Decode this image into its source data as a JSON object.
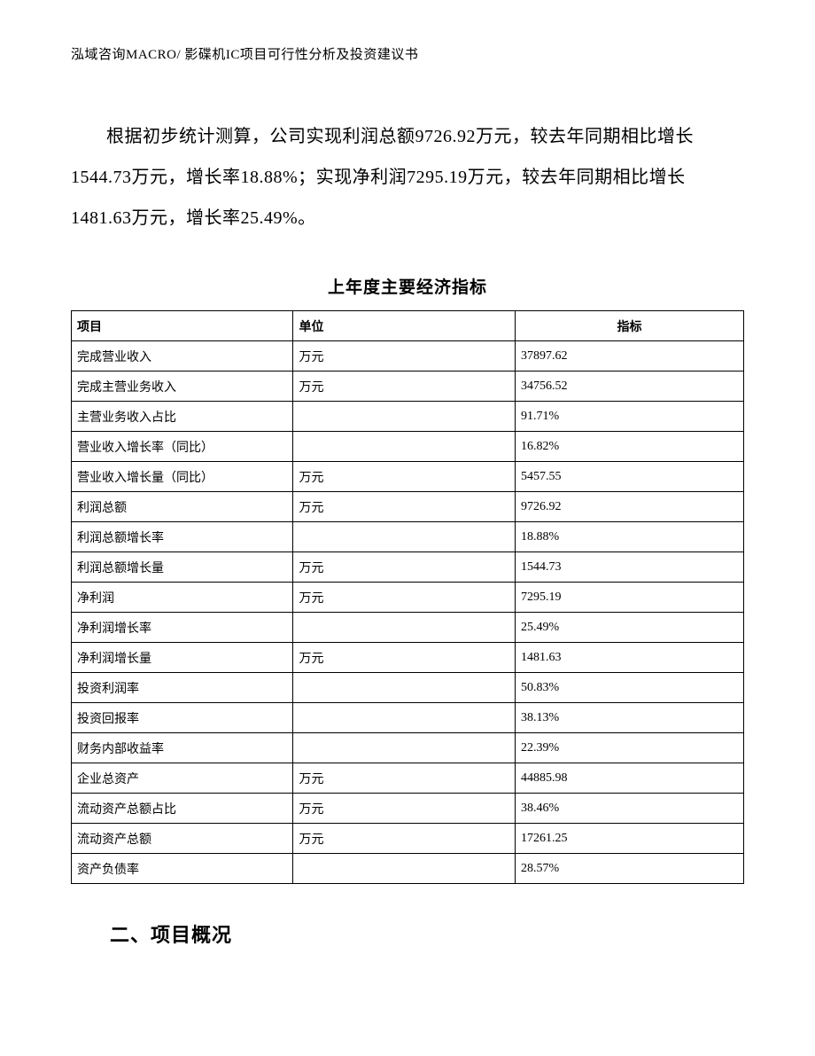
{
  "header": "泓域咨询MACRO/   影碟机IC项目可行性分析及投资建议书",
  "paragraph": "根据初步统计测算，公司实现利润总额9726.92万元，较去年同期相比增长1544.73万元，增长率18.88%；实现净利润7295.19万元，较去年同期相比增长1481.63万元，增长率25.49%。",
  "table_title": "上年度主要经济指标",
  "columns": {
    "item": "项目",
    "unit": "单位",
    "indicator": "指标"
  },
  "rows": [
    {
      "item": "完成营业收入",
      "unit": "万元",
      "indicator": "37897.62"
    },
    {
      "item": "完成主营业务收入",
      "unit": "万元",
      "indicator": "34756.52"
    },
    {
      "item": "主营业务收入占比",
      "unit": "",
      "indicator": "91.71%"
    },
    {
      "item": "营业收入增长率（同比）",
      "unit": "",
      "indicator": "16.82%"
    },
    {
      "item": "营业收入增长量（同比）",
      "unit": "万元",
      "indicator": "5457.55"
    },
    {
      "item": "利润总额",
      "unit": "万元",
      "indicator": "9726.92"
    },
    {
      "item": "利润总额增长率",
      "unit": "",
      "indicator": "18.88%"
    },
    {
      "item": "利润总额增长量",
      "unit": "万元",
      "indicator": "1544.73"
    },
    {
      "item": "净利润",
      "unit": "万元",
      "indicator": "7295.19"
    },
    {
      "item": "净利润增长率",
      "unit": "",
      "indicator": "25.49%"
    },
    {
      "item": "净利润增长量",
      "unit": "万元",
      "indicator": "1481.63"
    },
    {
      "item": "投资利润率",
      "unit": "",
      "indicator": "50.83%"
    },
    {
      "item": "投资回报率",
      "unit": "",
      "indicator": "38.13%"
    },
    {
      "item": "财务内部收益率",
      "unit": "",
      "indicator": "22.39%"
    },
    {
      "item": "企业总资产",
      "unit": "万元",
      "indicator": "44885.98"
    },
    {
      "item": "流动资产总额占比",
      "unit": "万元",
      "indicator": "38.46%"
    },
    {
      "item": "流动资产总额",
      "unit": "万元",
      "indicator": "17261.25"
    },
    {
      "item": "资产负债率",
      "unit": "",
      "indicator": "28.57%"
    }
  ],
  "section_heading": "二、项目概况"
}
